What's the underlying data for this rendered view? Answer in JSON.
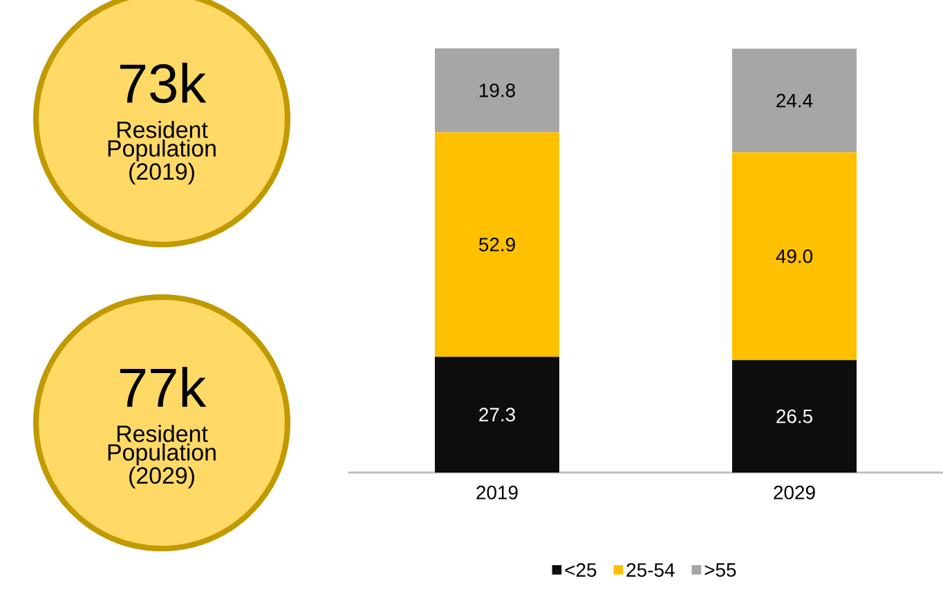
{
  "chart_data": [
    {
      "type": "other",
      "annotations": [
        "73k",
        "Resident Population (2019)",
        "77k",
        "Resident Population (2029)"
      ]
    },
    {
      "type": "bar",
      "stacked": true,
      "categories": [
        "2019",
        "2029"
      ],
      "series": [
        {
          "name": "<25",
          "color": "#0d0d0d",
          "values": [
            27.3,
            26.5
          ],
          "value_labels": [
            "27.3",
            "26.5"
          ]
        },
        {
          "name": "25-54",
          "color": "#ffc000",
          "values": [
            52.9,
            49.0
          ],
          "value_labels": [
            "52.9",
            "49.0"
          ]
        },
        {
          "name": ">55",
          "color": "#a6a6a6",
          "values": [
            19.8,
            24.4
          ],
          "value_labels": [
            "19.8",
            "24.4"
          ]
        }
      ],
      "legend": "bottom",
      "tick_labels": "x",
      "grid": false
    }
  ]
}
